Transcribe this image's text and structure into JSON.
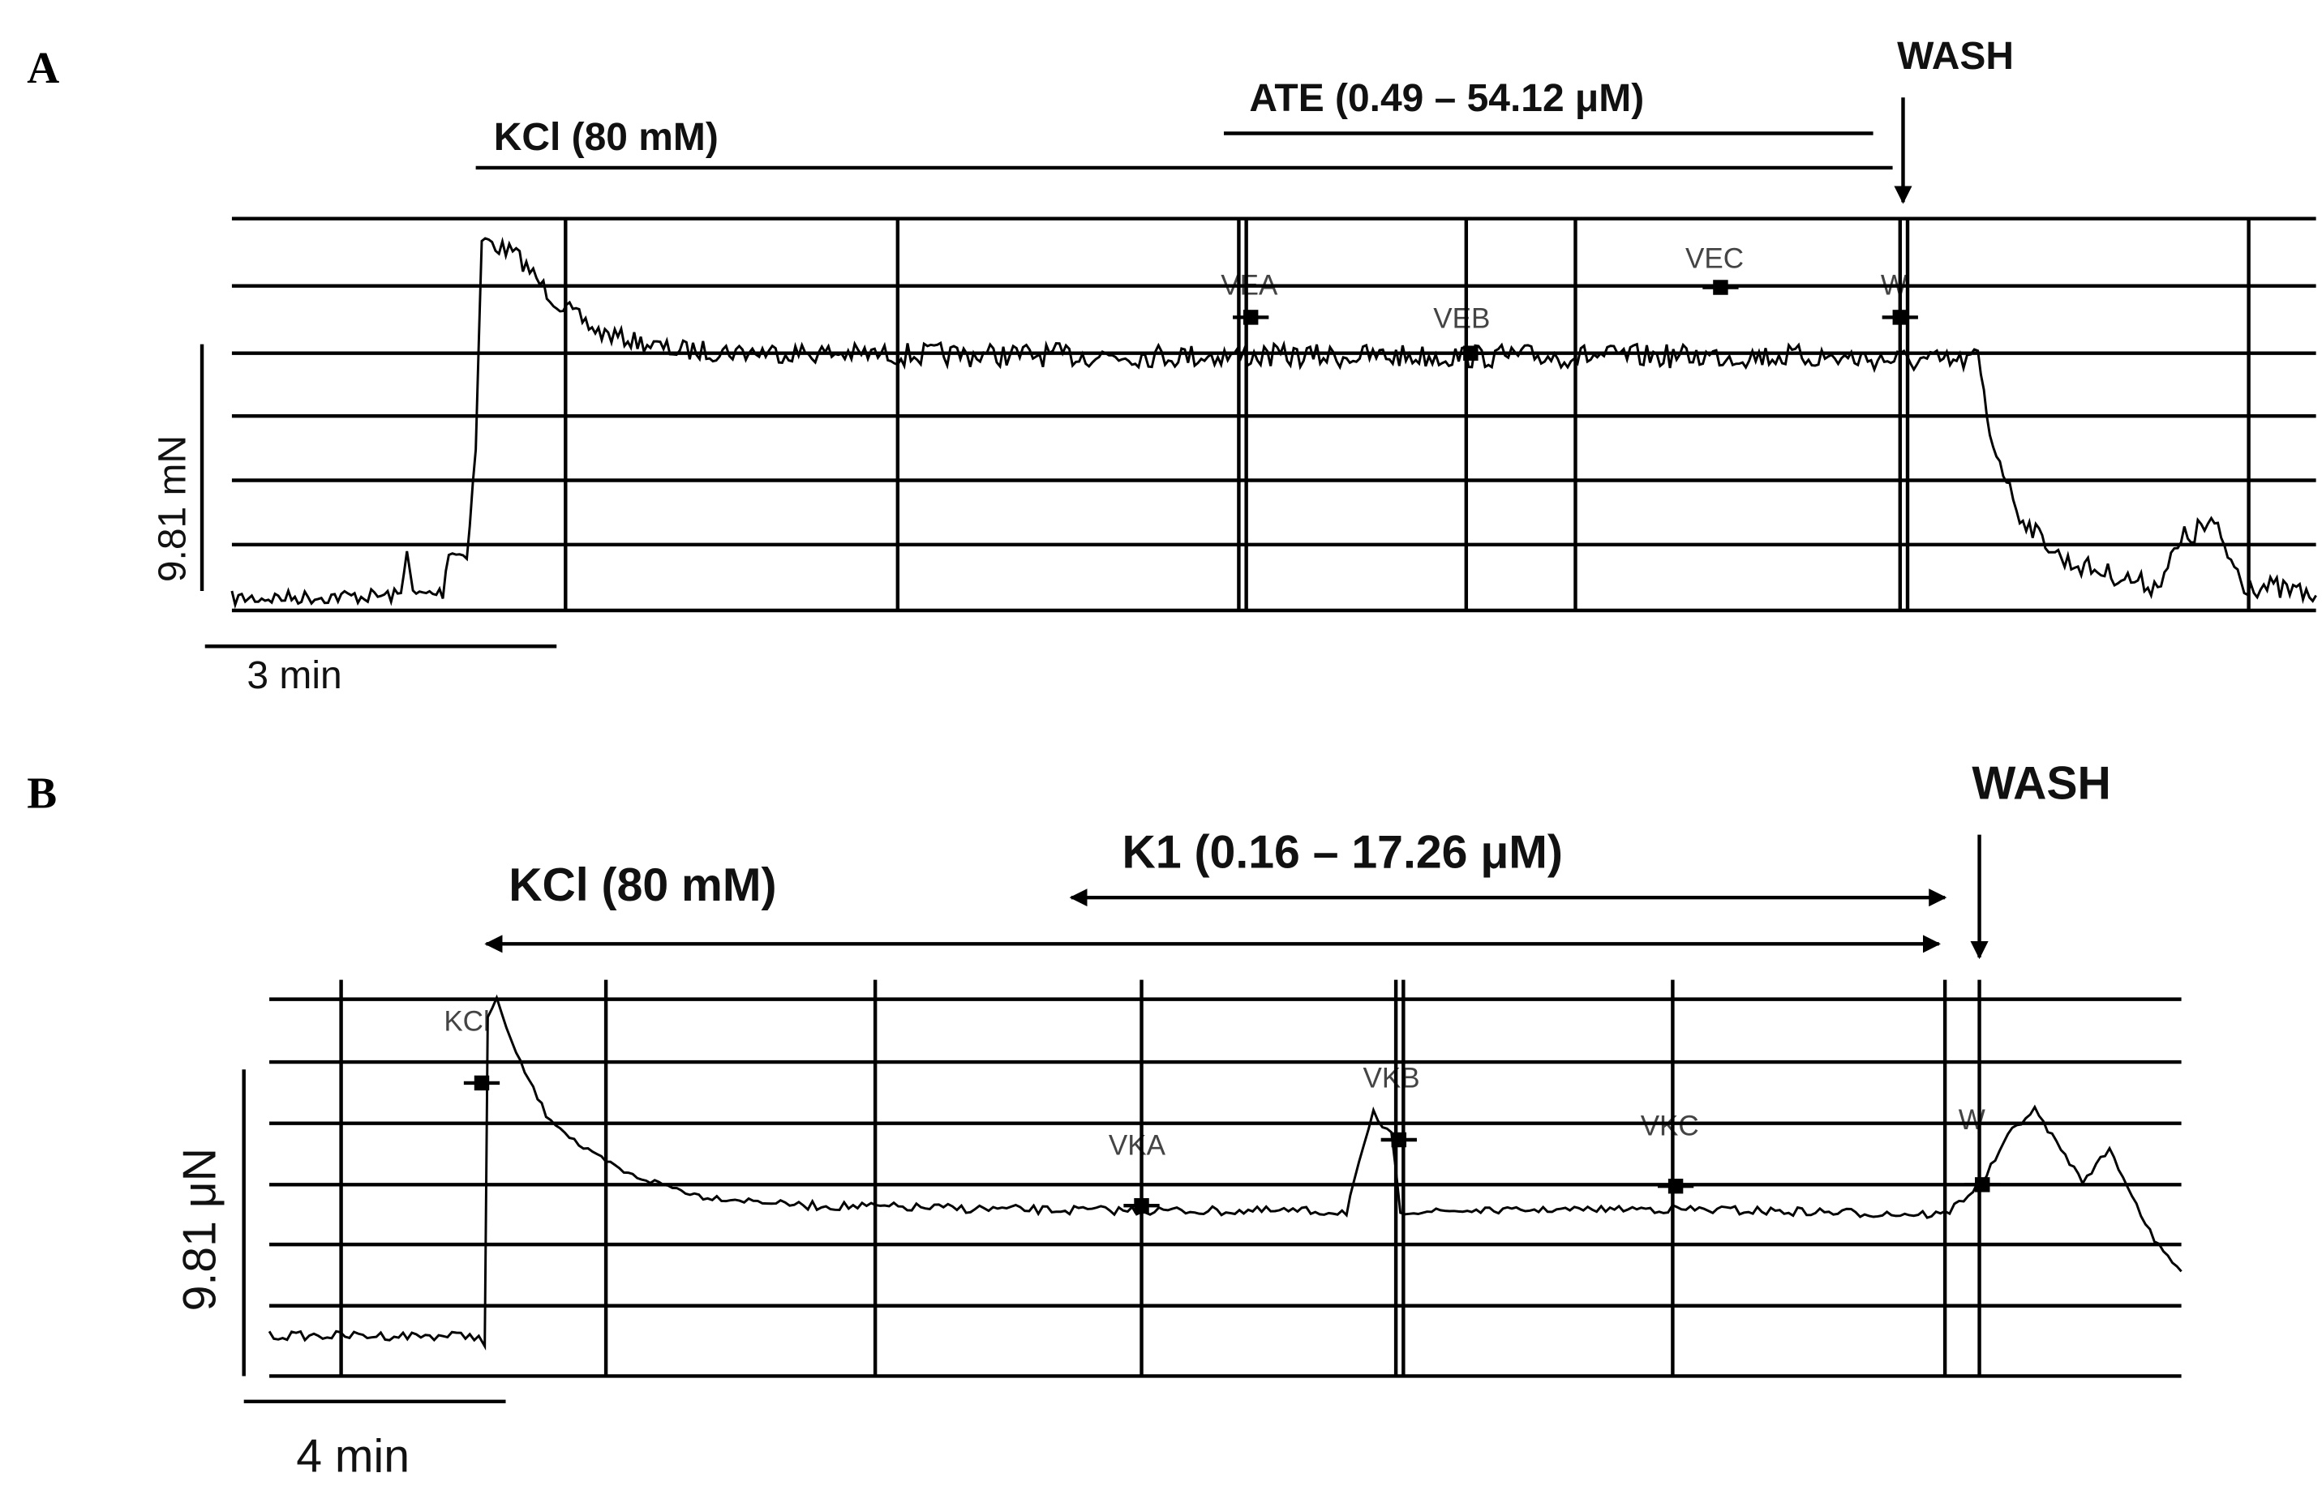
{
  "panels": [
    {
      "label": "A",
      "kcl_label": "KCl (80 mM)",
      "drug_label": "ATE (0.49 – 54.12 μM)",
      "wash_label": "WASH",
      "y_scale_label": "9.81 mN",
      "time_scale_label": "3 min",
      "markers": [
        "VEA",
        "VEB",
        "VEC",
        "W"
      ]
    },
    {
      "label": "B",
      "kcl_label": "KCl (80 mM)",
      "drug_label": "K1 (0.16 – 17.26 μM)",
      "wash_label": "WASH",
      "y_scale_label": "9.81 μN",
      "time_scale_label": "4 min",
      "markers": [
        "KCl",
        "VKA",
        "VKB",
        "VKC",
        "W"
      ]
    }
  ]
}
